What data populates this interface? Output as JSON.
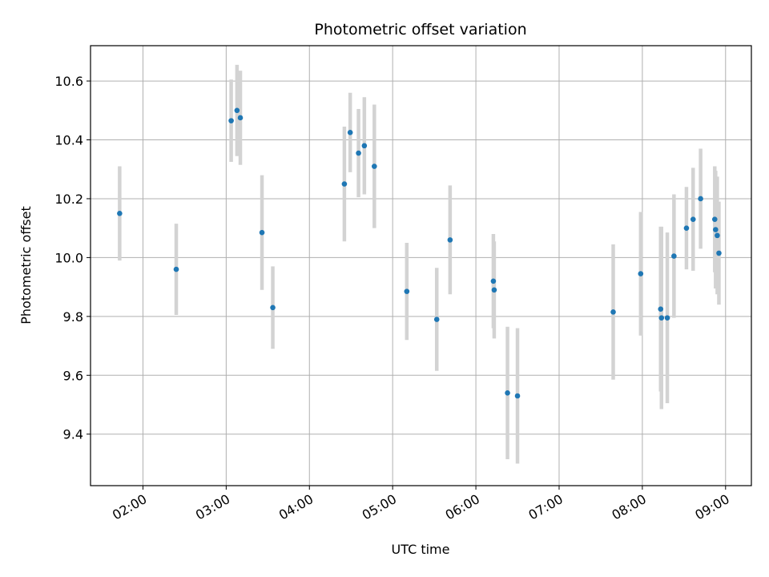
{
  "chart_data": {
    "type": "scatter",
    "title": "Photometric offset variation",
    "xlabel": "UTC time",
    "ylabel": "Photometric offset",
    "x_unit": "hours UTC",
    "xlim": [
      1.37,
      9.31
    ],
    "ylim": [
      9.225,
      10.72
    ],
    "x_ticks": [
      2,
      3,
      4,
      5,
      6,
      7,
      8,
      9
    ],
    "x_tick_labels": [
      "02:00",
      "03:00",
      "04:00",
      "05:00",
      "06:00",
      "07:00",
      "08:00",
      "09:00"
    ],
    "y_ticks": [
      9.4,
      9.6,
      9.8,
      10.0,
      10.2,
      10.4,
      10.6
    ],
    "y_tick_labels": [
      "9.4",
      "9.6",
      "9.8",
      "10.0",
      "10.2",
      "10.4",
      "10.6"
    ],
    "grid": true,
    "colors": {
      "marker": "#1f77b4",
      "errorbar": "#d3d3d3",
      "grid": "#b0b0b0",
      "axes": "#000000"
    },
    "series": [
      {
        "points": [
          {
            "x": 1.72,
            "y": 10.15,
            "err": 0.16
          },
          {
            "x": 2.4,
            "y": 9.96,
            "err": 0.155
          },
          {
            "x": 3.06,
            "y": 10.465,
            "err": 0.14
          },
          {
            "x": 3.13,
            "y": 10.5,
            "err": 0.155
          },
          {
            "x": 3.17,
            "y": 10.475,
            "err": 0.16
          },
          {
            "x": 3.43,
            "y": 10.085,
            "err": 0.195
          },
          {
            "x": 3.56,
            "y": 9.83,
            "err": 0.14
          },
          {
            "x": 4.42,
            "y": 10.25,
            "err": 0.195
          },
          {
            "x": 4.49,
            "y": 10.425,
            "err": 0.135
          },
          {
            "x": 4.59,
            "y": 10.355,
            "err": 0.15
          },
          {
            "x": 4.66,
            "y": 10.38,
            "err": 0.165
          },
          {
            "x": 4.78,
            "y": 10.31,
            "err": 0.21
          },
          {
            "x": 5.17,
            "y": 9.885,
            "err": 0.165
          },
          {
            "x": 5.53,
            "y": 9.79,
            "err": 0.175
          },
          {
            "x": 5.69,
            "y": 10.06,
            "err": 0.185
          },
          {
            "x": 6.21,
            "y": 9.92,
            "err": 0.16
          },
          {
            "x": 6.22,
            "y": 9.89,
            "err": 0.165
          },
          {
            "x": 6.38,
            "y": 9.54,
            "err": 0.225
          },
          {
            "x": 6.5,
            "y": 9.53,
            "err": 0.23
          },
          {
            "x": 7.65,
            "y": 9.815,
            "err": 0.23
          },
          {
            "x": 7.98,
            "y": 9.945,
            "err": 0.21
          },
          {
            "x": 8.22,
            "y": 9.825,
            "err": 0.28
          },
          {
            "x": 8.23,
            "y": 9.795,
            "err": 0.31
          },
          {
            "x": 8.3,
            "y": 9.795,
            "err": 0.29
          },
          {
            "x": 8.38,
            "y": 10.005,
            "err": 0.21
          },
          {
            "x": 8.53,
            "y": 10.1,
            "err": 0.14
          },
          {
            "x": 8.61,
            "y": 10.13,
            "err": 0.175
          },
          {
            "x": 8.7,
            "y": 10.2,
            "err": 0.17
          },
          {
            "x": 8.87,
            "y": 10.13,
            "err": 0.18
          },
          {
            "x": 8.88,
            "y": 10.095,
            "err": 0.2
          },
          {
            "x": 8.9,
            "y": 10.075,
            "err": 0.2
          },
          {
            "x": 8.92,
            "y": 10.015,
            "err": 0.175
          }
        ]
      }
    ]
  }
}
